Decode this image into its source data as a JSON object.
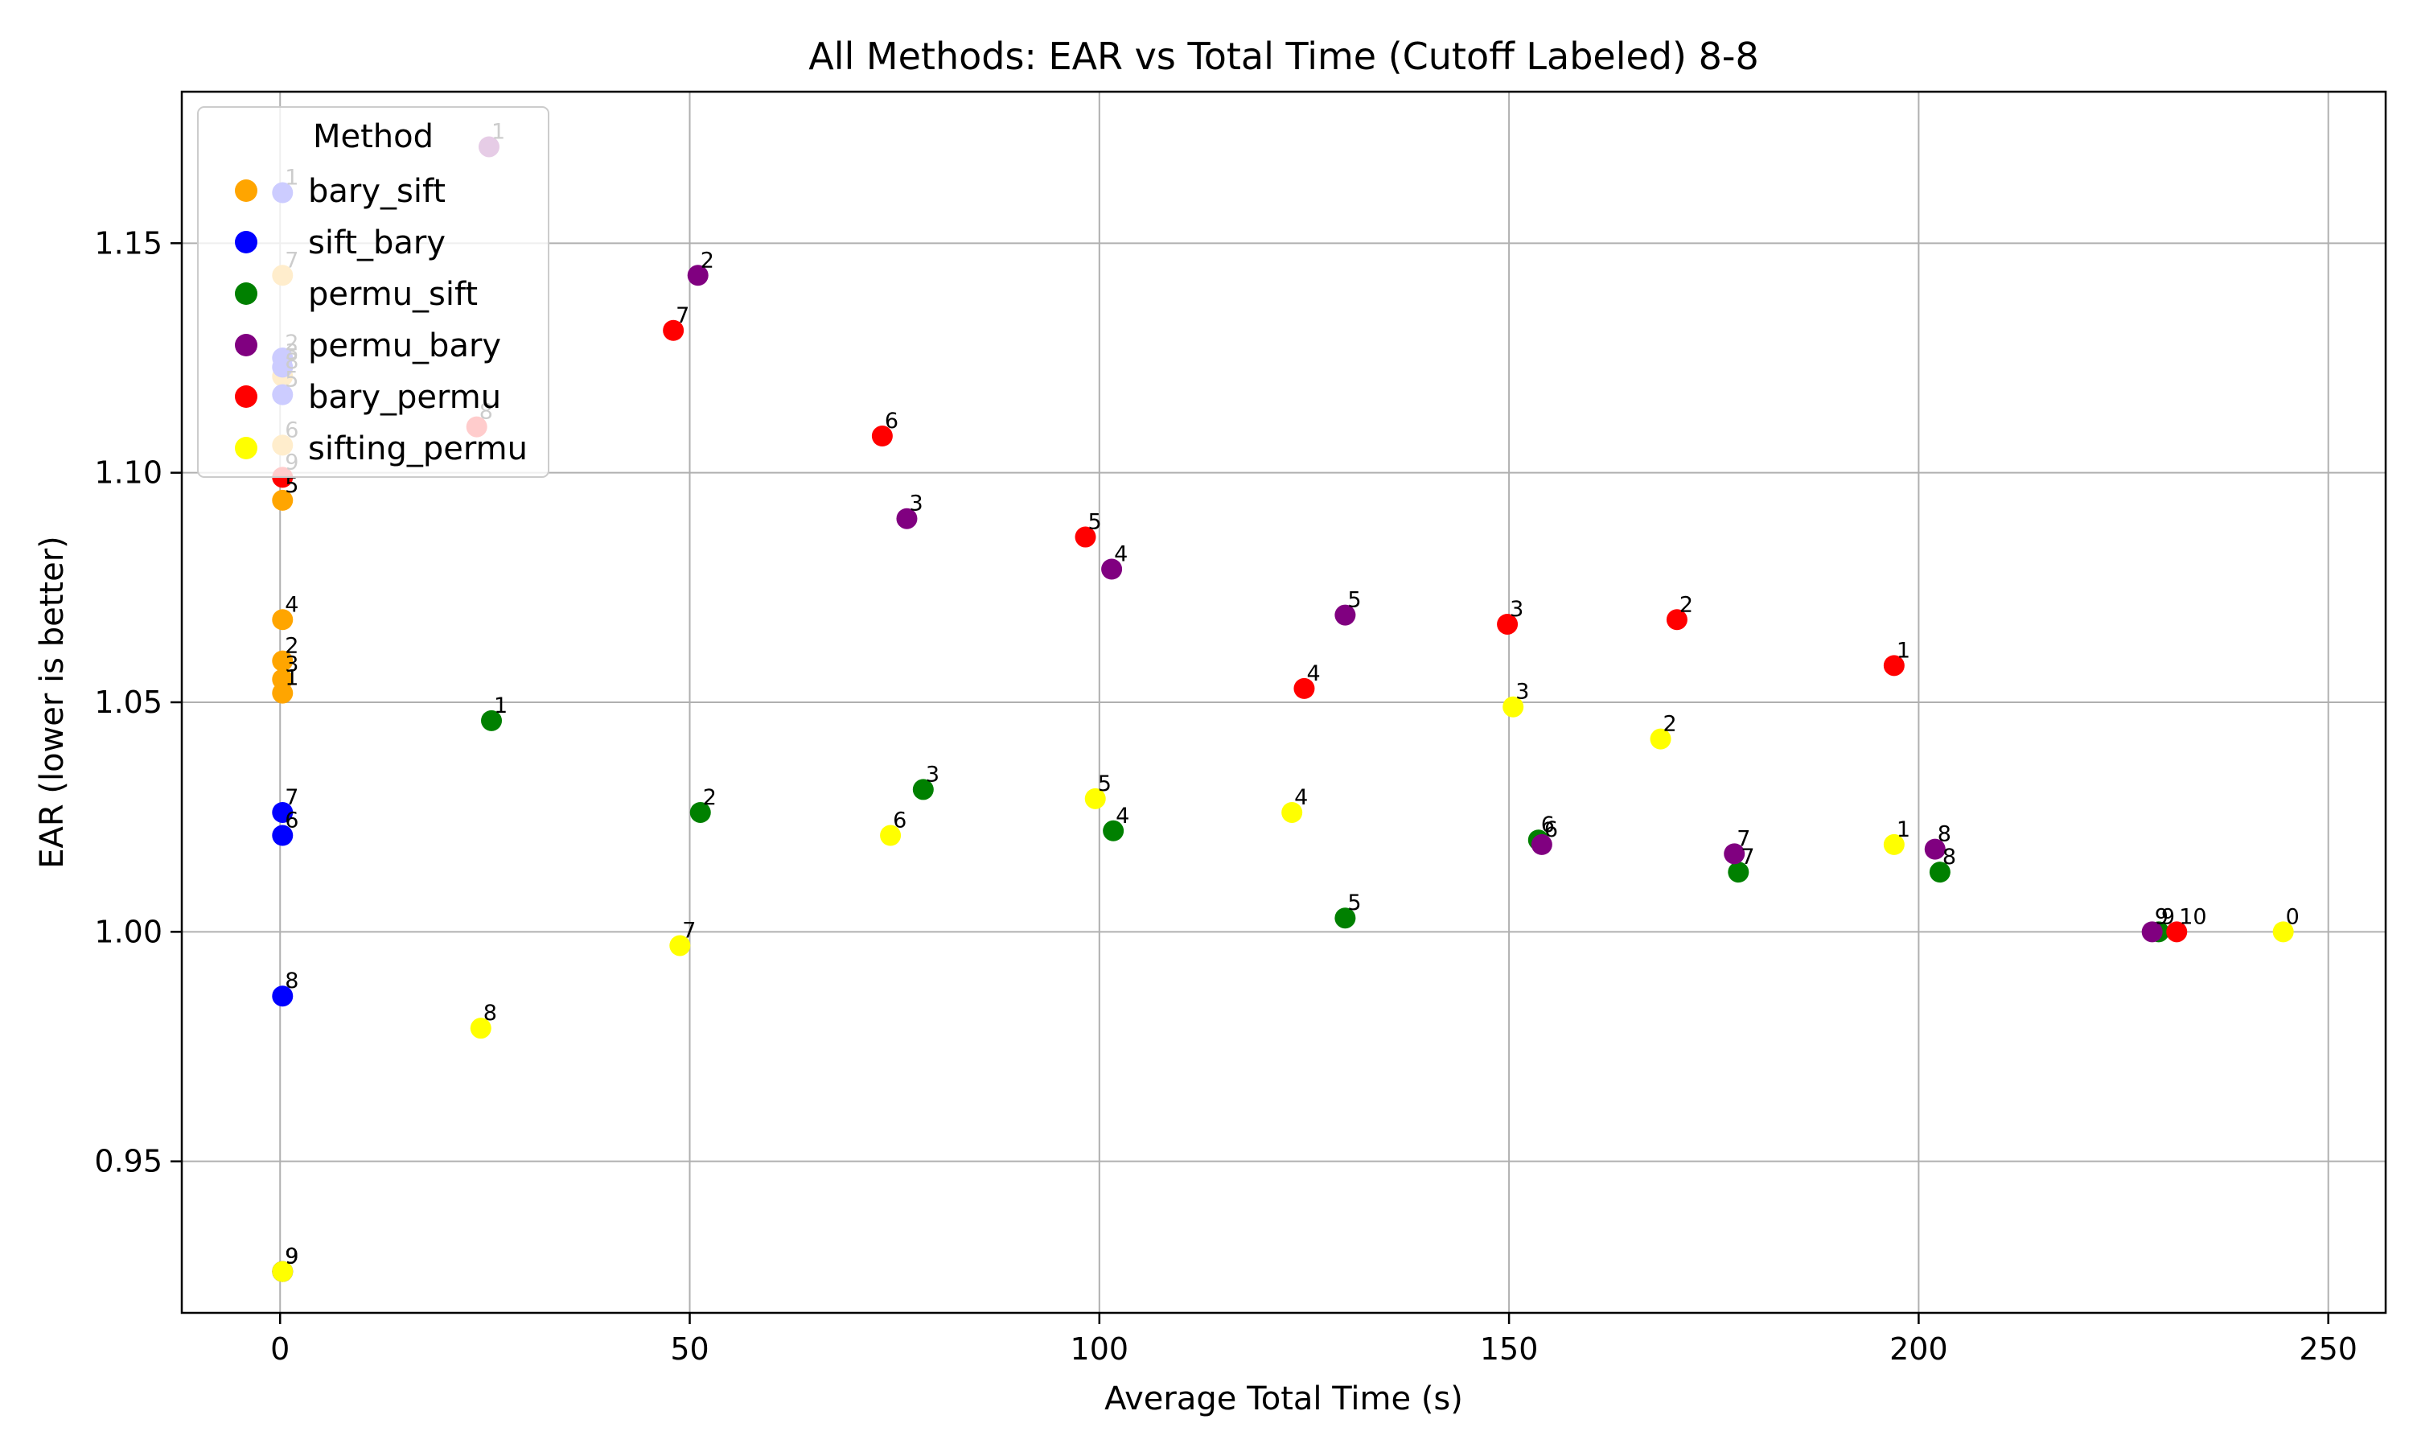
{
  "chart_data": {
    "type": "scatter",
    "title": "All Methods: EAR vs Total Time (Cutoff Labeled) 8-8",
    "xlabel": "Average Total Time (s)",
    "ylabel": "EAR (lower is better)",
    "xlim": [
      -12,
      257
    ],
    "ylim": [
      0.917,
      1.183
    ],
    "xticks": [
      0,
      50,
      100,
      150,
      200,
      250
    ],
    "xtick_labels": [
      "0",
      "50",
      "100",
      "150",
      "200",
      "250"
    ],
    "yticks": [
      0.95,
      1.0,
      1.05,
      1.1,
      1.15
    ],
    "ytick_labels": [
      "0.95",
      "1.00",
      "1.05",
      "1.10",
      "1.15"
    ],
    "grid": true,
    "legend": {
      "title": "Method",
      "placement": "top-left"
    },
    "series": [
      {
        "name": "bary_sift",
        "color": "#ffa500",
        "points": [
          {
            "x": 0.3,
            "y": 1.052,
            "label": "1"
          },
          {
            "x": 0.3,
            "y": 1.059,
            "label": "2"
          },
          {
            "x": 0.3,
            "y": 1.055,
            "label": "3"
          },
          {
            "x": 0.3,
            "y": 1.068,
            "label": "4"
          },
          {
            "x": 0.3,
            "y": 1.094,
            "label": "5"
          },
          {
            "x": 0.3,
            "y": 1.106,
            "label": "6"
          },
          {
            "x": 0.3,
            "y": 1.143,
            "label": "7"
          },
          {
            "x": 0.3,
            "y": 1.121,
            "label": "8"
          },
          {
            "x": 0.3,
            "y": 0.926,
            "label": "9"
          }
        ]
      },
      {
        "name": "sift_bary",
        "color": "#0000ff",
        "points": [
          {
            "x": 0.3,
            "y": 1.161,
            "label": "1"
          },
          {
            "x": 0.3,
            "y": 1.125,
            "label": "2"
          },
          {
            "x": 0.3,
            "y": 1.123,
            "label": "3"
          },
          {
            "x": 0.3,
            "y": 1.117,
            "label": "5"
          },
          {
            "x": 0.3,
            "y": 1.026,
            "label": "7"
          },
          {
            "x": 0.3,
            "y": 1.021,
            "label": "6"
          },
          {
            "x": 0.3,
            "y": 0.986,
            "label": "8"
          },
          {
            "x": 0.3,
            "y": 0.926,
            "label": "9"
          }
        ]
      },
      {
        "name": "permu_sift",
        "color": "#008000",
        "points": [
          {
            "x": 25.8,
            "y": 1.046,
            "label": "1"
          },
          {
            "x": 51.3,
            "y": 1.026,
            "label": "2"
          },
          {
            "x": 78.5,
            "y": 1.031,
            "label": "3"
          },
          {
            "x": 101.7,
            "y": 1.022,
            "label": "4"
          },
          {
            "x": 130.0,
            "y": 1.003,
            "label": "5"
          },
          {
            "x": 153.6,
            "y": 1.02,
            "label": "6"
          },
          {
            "x": 178.0,
            "y": 1.013,
            "label": "7"
          },
          {
            "x": 202.6,
            "y": 1.013,
            "label": "8"
          },
          {
            "x": 229.3,
            "y": 1.0,
            "label": "9"
          }
        ]
      },
      {
        "name": "permu_bary",
        "color": "#800080",
        "points": [
          {
            "x": 25.5,
            "y": 1.171,
            "label": "1"
          },
          {
            "x": 51.0,
            "y": 1.143,
            "label": "2"
          },
          {
            "x": 76.5,
            "y": 1.09,
            "label": "3"
          },
          {
            "x": 101.5,
            "y": 1.079,
            "label": "4"
          },
          {
            "x": 130.0,
            "y": 1.069,
            "label": "5"
          },
          {
            "x": 154.0,
            "y": 1.019,
            "label": "6"
          },
          {
            "x": 177.5,
            "y": 1.017,
            "label": "7"
          },
          {
            "x": 202.0,
            "y": 1.018,
            "label": "8"
          },
          {
            "x": 228.5,
            "y": 1.0,
            "label": "9"
          }
        ]
      },
      {
        "name": "bary_permu",
        "color": "#ff0000",
        "points": [
          {
            "x": 197.0,
            "y": 1.058,
            "label": "1"
          },
          {
            "x": 170.5,
            "y": 1.068,
            "label": "2"
          },
          {
            "x": 149.8,
            "y": 1.067,
            "label": "3"
          },
          {
            "x": 125.0,
            "y": 1.053,
            "label": "4"
          },
          {
            "x": 98.3,
            "y": 1.086,
            "label": "5"
          },
          {
            "x": 73.5,
            "y": 1.108,
            "label": "6"
          },
          {
            "x": 48.0,
            "y": 1.131,
            "label": "7"
          },
          {
            "x": 24.0,
            "y": 1.11,
            "label": "8"
          },
          {
            "x": 0.3,
            "y": 1.099,
            "label": "9"
          },
          {
            "x": 231.5,
            "y": 1.0,
            "label": "10"
          }
        ]
      },
      {
        "name": "sifting_permu",
        "color": "#ffff00",
        "points": [
          {
            "x": 244.5,
            "y": 1.0,
            "label": "0"
          },
          {
            "x": 197.0,
            "y": 1.019,
            "label": "1"
          },
          {
            "x": 168.5,
            "y": 1.042,
            "label": "2"
          },
          {
            "x": 150.5,
            "y": 1.049,
            "label": "3"
          },
          {
            "x": 123.5,
            "y": 1.026,
            "label": "4"
          },
          {
            "x": 99.5,
            "y": 1.029,
            "label": "5"
          },
          {
            "x": 74.5,
            "y": 1.021,
            "label": "6"
          },
          {
            "x": 48.8,
            "y": 0.997,
            "label": "7"
          },
          {
            "x": 24.5,
            "y": 0.979,
            "label": "8"
          },
          {
            "x": 0.3,
            "y": 0.926,
            "label": "9"
          }
        ]
      }
    ]
  }
}
